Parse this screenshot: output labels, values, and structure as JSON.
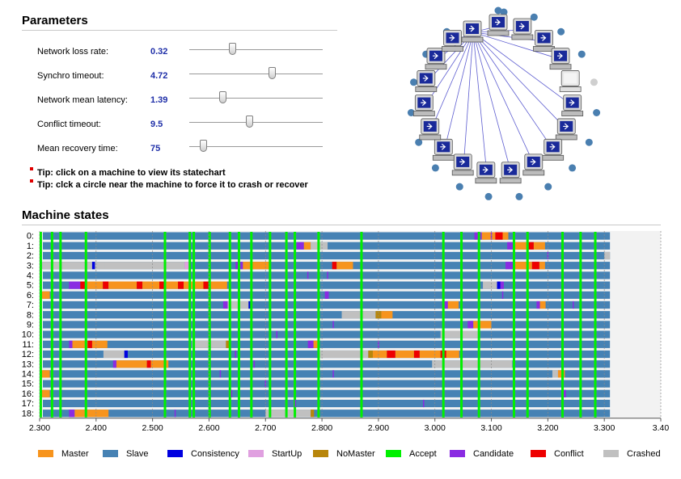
{
  "parameters": {
    "title": "Parameters",
    "items": [
      {
        "label": "Network loss rate:",
        "value": "0.32",
        "level": 0.32
      },
      {
        "label": "Synchro timeout:",
        "value": "4.72",
        "level": 0.62
      },
      {
        "label": "Network mean latency:",
        "value": "1.39",
        "level": 0.25
      },
      {
        "label": "Conflict timeout:",
        "value": "9.5",
        "level": 0.45
      },
      {
        "label": "Mean recovery time:",
        "value": "75",
        "level": 0.1
      }
    ],
    "tips": [
      "Tip: click on a machine to view its statechart",
      "Tip: clck a circle near the machine to force it to crash or recover"
    ]
  },
  "machine_states": {
    "title": "Machine states",
    "row_labels": [
      "0:",
      "1:",
      "2:",
      "3:",
      "4:",
      "5:",
      "6:",
      "7:",
      "8:",
      "9:",
      "10:",
      "11:",
      "12:",
      "13:",
      "14:",
      "15:",
      "16:",
      "17:",
      "18:"
    ],
    "x_ticks": [
      "2.300",
      "2.400",
      "2.500",
      "2.600",
      "2.700",
      "2.800",
      "2.900",
      "3.000",
      "3.100",
      "3.200",
      "3.300",
      "3.40"
    ],
    "legend": [
      {
        "label": "Master",
        "color": "#f7941d"
      },
      {
        "label": "Slave",
        "color": "#4682b4"
      },
      {
        "label": "Consistency",
        "color": "#0000e0"
      },
      {
        "label": "StartUp",
        "color": "#e0a0e0"
      },
      {
        "label": "NoMaster",
        "color": "#b8860b"
      },
      {
        "label": "Accept",
        "color": "#00f000"
      },
      {
        "label": "Candidate",
        "color": "#8a2be2"
      },
      {
        "label": "Conflict",
        "color": "#ee0000"
      },
      {
        "label": "Crashed",
        "color": "#c0c0c0"
      }
    ]
  },
  "network": {
    "hub_machine": 0,
    "machines": 19,
    "crashed_machine": 5
  },
  "chart_data": {
    "type": "timeline",
    "title": "Machine states",
    "xlim": [
      2.3,
      3.4
    ],
    "x_end": 3.31,
    "rows": 19,
    "default_state": "Slave",
    "accept_times": [
      2.302,
      2.322,
      2.337,
      2.382,
      2.522,
      2.566,
      2.573,
      2.601,
      2.637,
      2.653,
      2.675,
      2.708,
      2.737,
      2.752,
      2.794,
      2.87,
      3.015,
      3.047,
      3.078,
      3.14,
      3.164,
      3.226,
      3.258,
      3.284
    ],
    "segments": [
      {
        "row": 0,
        "start": 3.07,
        "end": 3.083,
        "state": "Candidate"
      },
      {
        "row": 0,
        "start": 3.083,
        "end": 3.107,
        "state": "Master"
      },
      {
        "row": 0,
        "start": 3.107,
        "end": 3.12,
        "state": "Conflict"
      },
      {
        "row": 0,
        "start": 3.12,
        "end": 3.13,
        "state": "Master"
      },
      {
        "row": 1,
        "start": 2.755,
        "end": 2.768,
        "state": "Candidate"
      },
      {
        "row": 1,
        "start": 2.768,
        "end": 2.78,
        "state": "Master"
      },
      {
        "row": 1,
        "start": 2.78,
        "end": 2.81,
        "state": "Crashed"
      },
      {
        "row": 1,
        "start": 3.128,
        "end": 3.14,
        "state": "Candidate"
      },
      {
        "row": 1,
        "start": 3.14,
        "end": 3.165,
        "state": "Master"
      },
      {
        "row": 1,
        "start": 3.165,
        "end": 3.175,
        "state": "Conflict"
      },
      {
        "row": 1,
        "start": 3.175,
        "end": 3.195,
        "state": "Master"
      },
      {
        "row": 2,
        "start": 3.3,
        "end": 3.31,
        "state": "Crashed"
      },
      {
        "row": 3,
        "start": 2.3,
        "end": 2.393,
        "state": "Crashed"
      },
      {
        "row": 3,
        "start": 2.393,
        "end": 2.398,
        "state": "Consistency"
      },
      {
        "row": 3,
        "start": 2.398,
        "end": 2.416,
        "state": "Crashed"
      },
      {
        "row": 3,
        "start": 2.416,
        "end": 2.557,
        "state": "Crashed"
      },
      {
        "row": 3,
        "start": 2.557,
        "end": 2.565,
        "state": "StartUp"
      },
      {
        "row": 3,
        "start": 2.647,
        "end": 2.66,
        "state": "Candidate"
      },
      {
        "row": 3,
        "start": 2.66,
        "end": 2.706,
        "state": "Master"
      },
      {
        "row": 3,
        "start": 2.818,
        "end": 2.826,
        "state": "Conflict"
      },
      {
        "row": 3,
        "start": 2.826,
        "end": 2.855,
        "state": "Master"
      },
      {
        "row": 3,
        "start": 3.125,
        "end": 3.14,
        "state": "Candidate"
      },
      {
        "row": 3,
        "start": 3.14,
        "end": 3.172,
        "state": "Master"
      },
      {
        "row": 3,
        "start": 3.172,
        "end": 3.185,
        "state": "Conflict"
      },
      {
        "row": 3,
        "start": 3.185,
        "end": 3.195,
        "state": "Master"
      },
      {
        "row": 5,
        "start": 2.352,
        "end": 2.372,
        "state": "Candidate"
      },
      {
        "row": 5,
        "start": 2.372,
        "end": 2.382,
        "state": "Conflict"
      },
      {
        "row": 5,
        "start": 2.382,
        "end": 2.412,
        "state": "Master"
      },
      {
        "row": 5,
        "start": 2.412,
        "end": 2.422,
        "state": "Conflict"
      },
      {
        "row": 5,
        "start": 2.422,
        "end": 2.472,
        "state": "Master"
      },
      {
        "row": 5,
        "start": 2.472,
        "end": 2.482,
        "state": "Conflict"
      },
      {
        "row": 5,
        "start": 2.482,
        "end": 2.512,
        "state": "Master"
      },
      {
        "row": 5,
        "start": 2.512,
        "end": 2.522,
        "state": "Conflict"
      },
      {
        "row": 5,
        "start": 2.522,
        "end": 2.545,
        "state": "Master"
      },
      {
        "row": 5,
        "start": 2.545,
        "end": 2.555,
        "state": "Conflict"
      },
      {
        "row": 5,
        "start": 2.555,
        "end": 2.59,
        "state": "Master"
      },
      {
        "row": 5,
        "start": 2.59,
        "end": 2.6,
        "state": "Conflict"
      },
      {
        "row": 5,
        "start": 2.6,
        "end": 2.632,
        "state": "Master"
      },
      {
        "row": 5,
        "start": 3.085,
        "end": 3.11,
        "state": "Crashed"
      },
      {
        "row": 5,
        "start": 3.11,
        "end": 3.116,
        "state": "Consistency"
      },
      {
        "row": 5,
        "start": 3.116,
        "end": 3.122,
        "state": "Candidate"
      },
      {
        "row": 6,
        "start": 2.3,
        "end": 2.318,
        "state": "Master"
      },
      {
        "row": 6,
        "start": 2.805,
        "end": 2.812,
        "state": "Candidate"
      },
      {
        "row": 7,
        "start": 2.625,
        "end": 2.633,
        "state": "Candidate"
      },
      {
        "row": 7,
        "start": 2.633,
        "end": 2.67,
        "state": "Crashed"
      },
      {
        "row": 7,
        "start": 2.67,
        "end": 2.676,
        "state": "Consistency"
      },
      {
        "row": 7,
        "start": 3.013,
        "end": 3.023,
        "state": "Candidate"
      },
      {
        "row": 7,
        "start": 3.023,
        "end": 3.042,
        "state": "Master"
      },
      {
        "row": 7,
        "start": 3.18,
        "end": 3.186,
        "state": "Candidate"
      },
      {
        "row": 7,
        "start": 3.186,
        "end": 3.196,
        "state": "Master"
      },
      {
        "row": 8,
        "start": 2.835,
        "end": 2.895,
        "state": "Crashed"
      },
      {
        "row": 8,
        "start": 2.895,
        "end": 2.905,
        "state": "NoMaster"
      },
      {
        "row": 8,
        "start": 2.905,
        "end": 2.925,
        "state": "Master"
      },
      {
        "row": 9,
        "start": 3.058,
        "end": 3.068,
        "state": "Candidate"
      },
      {
        "row": 9,
        "start": 3.068,
        "end": 3.1,
        "state": "Master"
      },
      {
        "row": 10,
        "start": 3.01,
        "end": 3.08,
        "state": "Crashed"
      },
      {
        "row": 11,
        "start": 2.352,
        "end": 2.358,
        "state": "Candidate"
      },
      {
        "row": 11,
        "start": 2.358,
        "end": 2.385,
        "state": "Master"
      },
      {
        "row": 11,
        "start": 2.385,
        "end": 2.393,
        "state": "Conflict"
      },
      {
        "row": 11,
        "start": 2.393,
        "end": 2.42,
        "state": "Master"
      },
      {
        "row": 11,
        "start": 2.57,
        "end": 2.63,
        "state": "Crashed"
      },
      {
        "row": 11,
        "start": 2.63,
        "end": 2.636,
        "state": "NoMaster"
      },
      {
        "row": 11,
        "start": 2.775,
        "end": 2.785,
        "state": "Candidate"
      },
      {
        "row": 11,
        "start": 2.785,
        "end": 2.795,
        "state": "Master"
      },
      {
        "row": 12,
        "start": 2.413,
        "end": 2.45,
        "state": "Crashed"
      },
      {
        "row": 12,
        "start": 2.45,
        "end": 2.456,
        "state": "Consistency"
      },
      {
        "row": 12,
        "start": 2.795,
        "end": 2.882,
        "state": "Crashed"
      },
      {
        "row": 12,
        "start": 2.882,
        "end": 2.89,
        "state": "NoMaster"
      },
      {
        "row": 12,
        "start": 2.89,
        "end": 2.915,
        "state": "Master"
      },
      {
        "row": 12,
        "start": 2.915,
        "end": 2.93,
        "state": "Conflict"
      },
      {
        "row": 12,
        "start": 2.93,
        "end": 2.963,
        "state": "Master"
      },
      {
        "row": 12,
        "start": 2.963,
        "end": 2.973,
        "state": "Conflict"
      },
      {
        "row": 12,
        "start": 2.973,
        "end": 3.01,
        "state": "Master"
      },
      {
        "row": 12,
        "start": 3.01,
        "end": 3.02,
        "state": "Conflict"
      },
      {
        "row": 12,
        "start": 3.02,
        "end": 3.043,
        "state": "Master"
      },
      {
        "row": 13,
        "start": 2.43,
        "end": 2.436,
        "state": "Candidate"
      },
      {
        "row": 13,
        "start": 2.436,
        "end": 2.49,
        "state": "Master"
      },
      {
        "row": 13,
        "start": 2.49,
        "end": 2.497,
        "state": "Conflict"
      },
      {
        "row": 13,
        "start": 2.497,
        "end": 2.528,
        "state": "Master"
      },
      {
        "row": 13,
        "start": 2.995,
        "end": 3.137,
        "state": "Crashed"
      },
      {
        "row": 14,
        "start": 2.3,
        "end": 2.318,
        "state": "Master"
      },
      {
        "row": 14,
        "start": 3.208,
        "end": 3.218,
        "state": "Crashed"
      },
      {
        "row": 14,
        "start": 3.218,
        "end": 3.23,
        "state": "Master"
      },
      {
        "row": 16,
        "start": 2.3,
        "end": 2.318,
        "state": "Master"
      },
      {
        "row": 16,
        "start": 3.226,
        "end": 3.232,
        "state": "Candidate"
      },
      {
        "row": 18,
        "start": 2.352,
        "end": 2.362,
        "state": "Candidate"
      },
      {
        "row": 18,
        "start": 2.362,
        "end": 2.422,
        "state": "Master"
      },
      {
        "row": 18,
        "start": 2.7,
        "end": 2.78,
        "state": "Crashed"
      },
      {
        "row": 18,
        "start": 2.78,
        "end": 2.786,
        "state": "NoMaster"
      }
    ],
    "marks": [
      {
        "row": 0,
        "t": 3.1,
        "state": "Candidate"
      },
      {
        "row": 2,
        "t": 3.2,
        "state": "Candidate"
      },
      {
        "row": 4,
        "t": 2.775,
        "state": "Candidate"
      },
      {
        "row": 4,
        "t": 2.81,
        "state": "Candidate"
      },
      {
        "row": 6,
        "t": 3.12,
        "state": "Candidate"
      },
      {
        "row": 7,
        "t": 3.245,
        "state": "Candidate"
      },
      {
        "row": 9,
        "t": 2.82,
        "state": "Candidate"
      },
      {
        "row": 10,
        "t": 2.72,
        "state": "Candidate"
      },
      {
        "row": 11,
        "t": 2.9,
        "state": "Candidate"
      },
      {
        "row": 12,
        "t": 2.647,
        "state": "Candidate"
      },
      {
        "row": 13,
        "t": 2.68,
        "state": "Candidate"
      },
      {
        "row": 14,
        "t": 2.62,
        "state": "Candidate"
      },
      {
        "row": 14,
        "t": 2.82,
        "state": "Candidate"
      },
      {
        "row": 15,
        "t": 2.7,
        "state": "Candidate"
      },
      {
        "row": 16,
        "t": 2.64,
        "state": "Candidate"
      },
      {
        "row": 17,
        "t": 2.753,
        "state": "Candidate"
      },
      {
        "row": 17,
        "t": 2.98,
        "state": "Candidate"
      },
      {
        "row": 18,
        "t": 2.54,
        "state": "Candidate"
      }
    ]
  }
}
